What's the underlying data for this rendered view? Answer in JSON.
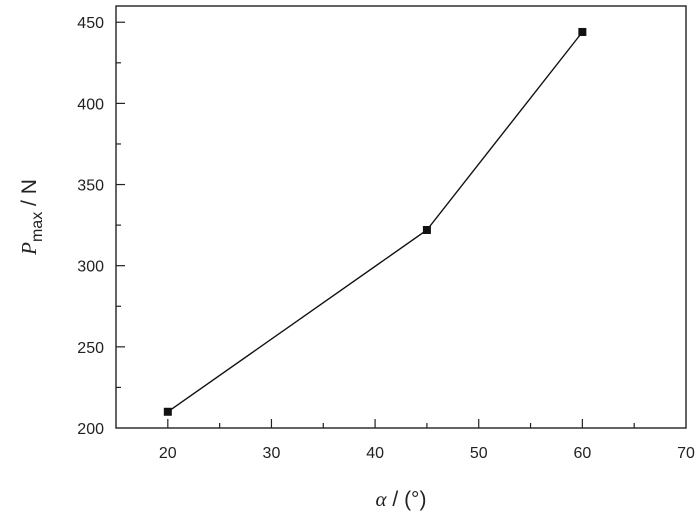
{
  "chart_data": {
    "type": "line",
    "x": [
      20,
      45,
      60
    ],
    "series": [
      {
        "values": [
          210,
          322,
          444
        ]
      }
    ],
    "xlim": [
      15,
      70
    ],
    "ylim": [
      200,
      460
    ],
    "xticks": [
      20,
      30,
      40,
      50,
      60,
      70
    ],
    "yticks": [
      200,
      250,
      300,
      350,
      400,
      450
    ],
    "xlabel": {
      "symbol": "α",
      "unit": " / (°)"
    },
    "ylabel": {
      "symbol": "P",
      "subscript": "max",
      "unit": " / N"
    },
    "grid": false,
    "legend": "none",
    "marker": "square",
    "colors": {
      "line": "#111111",
      "axis": "#222222"
    }
  }
}
